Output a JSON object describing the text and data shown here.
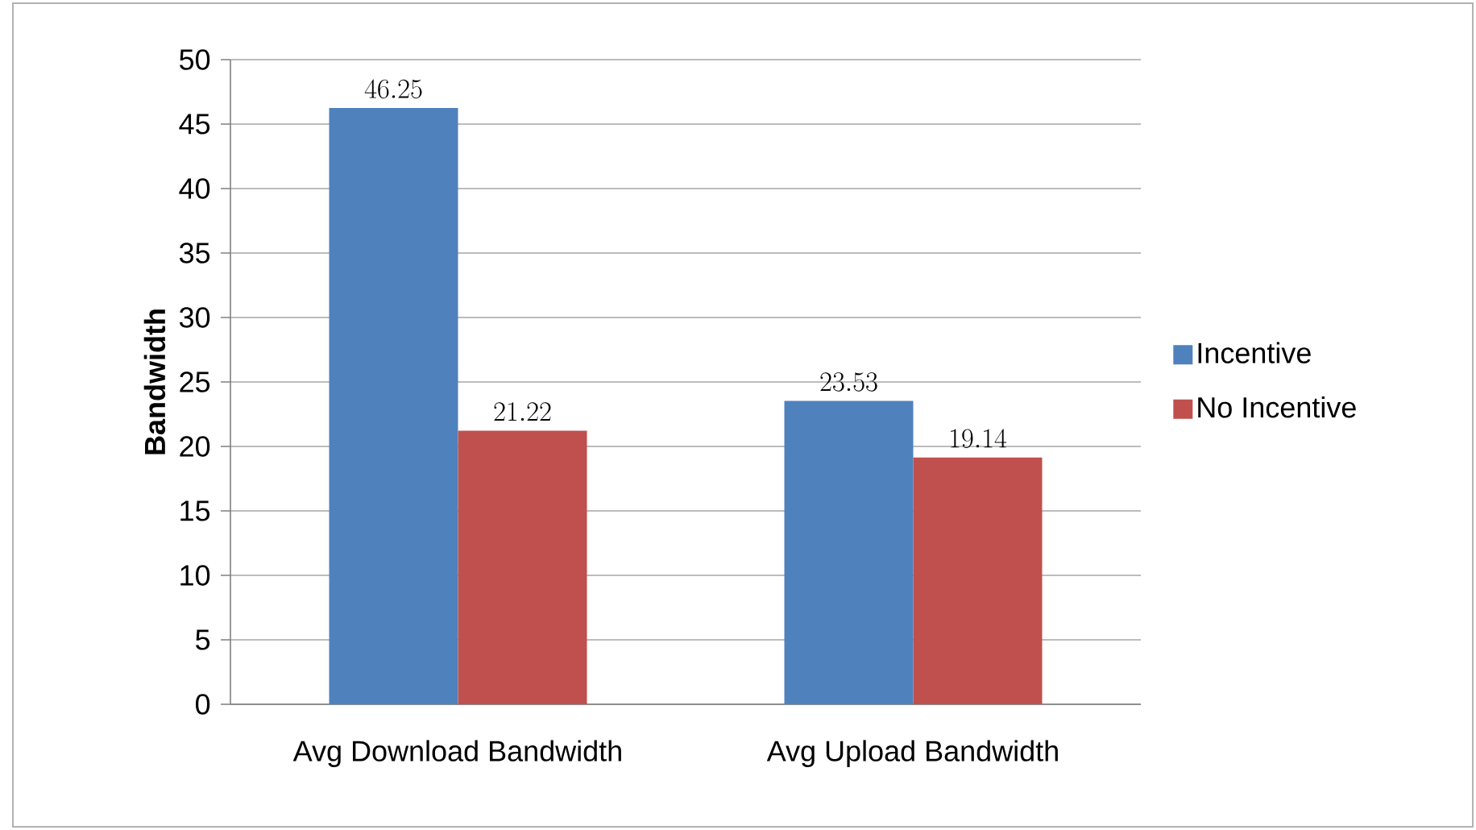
{
  "chart_data": {
    "type": "bar",
    "ylabel": "Bandwidth",
    "categories": [
      "Avg Download Bandwidth",
      "Avg Upload Bandwidth"
    ],
    "series": [
      {
        "name": "Incentive",
        "color": "#4f81bd",
        "values": [
          46.25,
          23.53
        ]
      },
      {
        "name": "No Incentive",
        "color": "#c0504d",
        "values": [
          21.22,
          19.14
        ]
      }
    ],
    "ylim": [
      0,
      50
    ],
    "yticks": [
      0,
      5,
      10,
      15,
      20,
      25,
      30,
      35,
      40,
      45,
      50
    ],
    "grid": "y",
    "legend": "right",
    "data_labels": true
  }
}
